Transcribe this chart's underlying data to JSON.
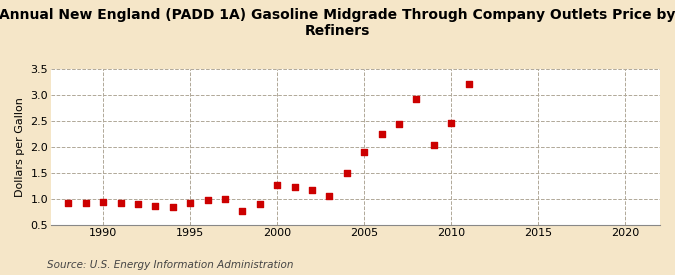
{
  "title": "Annual New England (PADD 1A) Gasoline Midgrade Through Company Outlets Price by\nRefiners",
  "ylabel": "Dollars per Gallon",
  "source": "Source: U.S. Energy Information Administration",
  "background_color": "#f5e6c8",
  "plot_bg_color": "#ffffff",
  "marker_color": "#cc0000",
  "xlim": [
    1987,
    2022
  ],
  "ylim": [
    0.5,
    3.5
  ],
  "xticks": [
    1990,
    1995,
    2000,
    2005,
    2010,
    2015,
    2020
  ],
  "yticks": [
    0.5,
    1.0,
    1.5,
    2.0,
    2.5,
    3.0,
    3.5
  ],
  "years": [
    1988,
    1989,
    1990,
    1991,
    1992,
    1993,
    1994,
    1995,
    1996,
    1997,
    1998,
    1999,
    2000,
    2001,
    2002,
    2003,
    2004,
    2005,
    2006,
    2007,
    2008,
    2009,
    2010,
    2011
  ],
  "values": [
    0.93,
    0.92,
    0.94,
    0.93,
    0.9,
    0.87,
    0.84,
    0.93,
    0.98,
    1.0,
    0.77,
    0.91,
    1.27,
    1.23,
    1.17,
    1.05,
    1.5,
    1.9,
    2.25,
    2.44,
    2.92,
    2.04,
    2.45,
    3.2
  ]
}
